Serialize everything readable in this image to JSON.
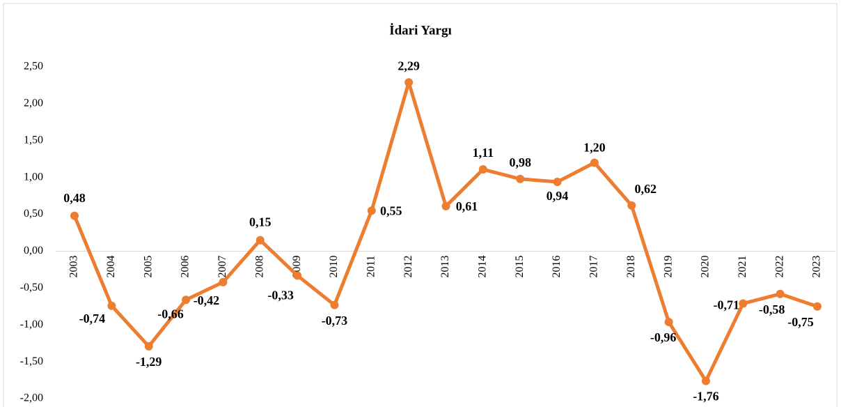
{
  "chart_data": {
    "type": "line",
    "title": "İdari Yargı",
    "categories": [
      "2003",
      "2004",
      "2005",
      "2006",
      "2007",
      "2008",
      "2009",
      "2010",
      "2011",
      "2012",
      "2013",
      "2014",
      "2015",
      "2016",
      "2017",
      "2018",
      "2019",
      "2020",
      "2021",
      "2022",
      "2023"
    ],
    "series": [
      {
        "name": "İdari Yargı",
        "color": "#ed7d31",
        "values": [
          0.48,
          -0.74,
          -1.29,
          -0.66,
          -0.42,
          0.15,
          -0.33,
          -0.73,
          0.55,
          2.29,
          0.61,
          1.11,
          0.98,
          0.94,
          1.2,
          0.62,
          -0.96,
          -1.76,
          -0.71,
          -0.58,
          -0.75
        ],
        "value_labels": [
          "0,48",
          "-0,74",
          "-1,29",
          "-0,66",
          "-0,42",
          "0,15",
          "-0,33",
          "-0,73",
          "0,55",
          "2,29",
          "0,61",
          "1,11",
          "0,98",
          "0,94",
          "1,20",
          "0,62",
          "-0,96",
          "-1,76",
          "-0,71",
          "-0,58",
          "-0,75"
        ]
      }
    ],
    "ylim": [
      -2,
      2.5
    ],
    "yticks": [
      {
        "value": 2.5,
        "label": "2,50"
      },
      {
        "value": 2,
        "label": "2,00"
      },
      {
        "value": 1.5,
        "label": "1,50"
      },
      {
        "value": 1,
        "label": "1,00"
      },
      {
        "value": 0.5,
        "label": "0,50"
      },
      {
        "value": 0,
        "label": "0,00"
      },
      {
        "value": -0.5,
        "label": "-0,50"
      },
      {
        "value": -1,
        "label": "-1,00"
      },
      {
        "value": -1.5,
        "label": "-1,50"
      },
      {
        "value": -2,
        "label": "-2,00"
      }
    ],
    "grid": false
  }
}
